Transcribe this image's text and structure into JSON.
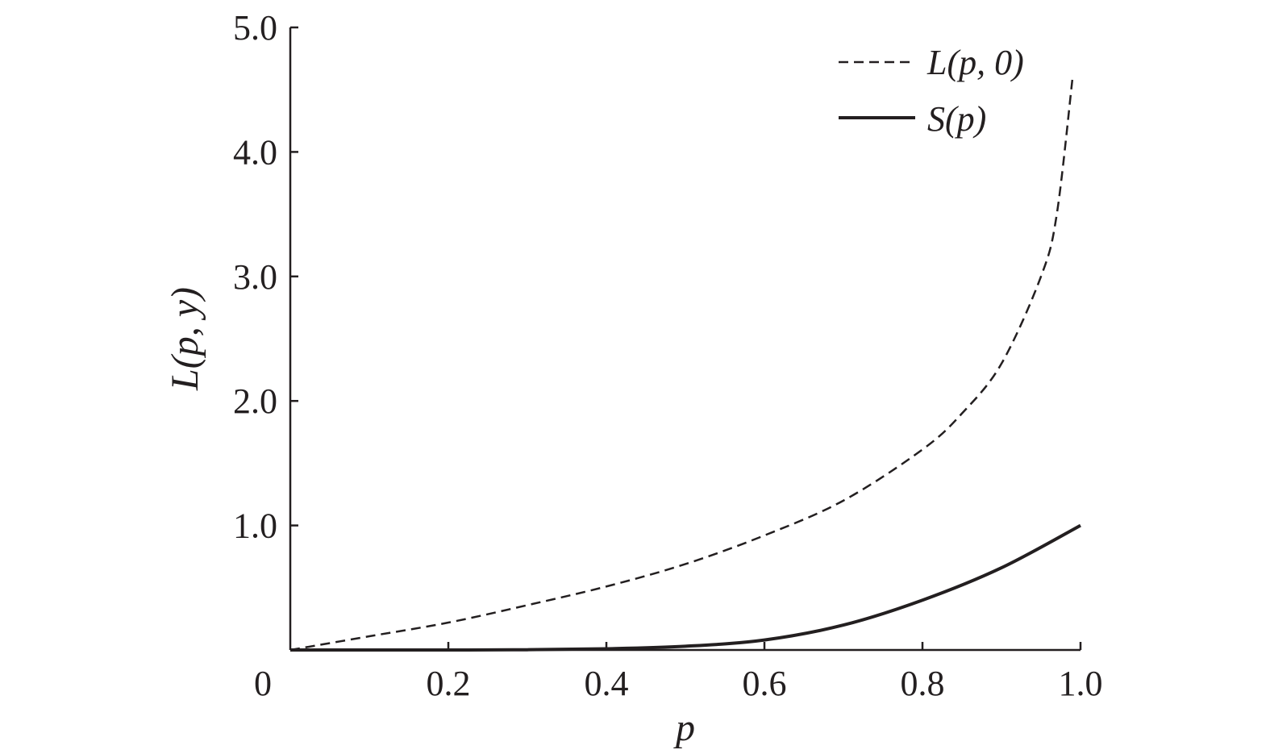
{
  "chart_data": {
    "type": "line",
    "xlabel": "p",
    "ylabel": "L(p, y)",
    "xlim": [
      0,
      1.0
    ],
    "ylim": [
      0,
      5.0
    ],
    "x_ticks": [
      "0",
      "0.2",
      "0.4",
      "0.6",
      "0.8",
      "1.0"
    ],
    "y_ticks": [
      "1.0",
      "2.0",
      "3.0",
      "4.0",
      "5.0"
    ],
    "legend_position": "top-right",
    "grid": false,
    "series": [
      {
        "name": "L(p, 0)",
        "style": "dashed",
        "x": [
          0,
          0.1,
          0.2,
          0.3,
          0.4,
          0.5,
          0.6,
          0.7,
          0.8,
          0.85,
          0.9,
          0.95,
          0.97,
          0.99
        ],
        "y": [
          0,
          0.11,
          0.22,
          0.36,
          0.51,
          0.69,
          0.92,
          1.2,
          1.61,
          1.9,
          2.3,
          3.0,
          3.5,
          4.6
        ]
      },
      {
        "name": "S(p)",
        "style": "solid",
        "x": [
          0,
          0.1,
          0.2,
          0.3,
          0.4,
          0.5,
          0.6,
          0.7,
          0.8,
          0.9,
          1.0
        ],
        "y": [
          0,
          0.0,
          0.0,
          0.002,
          0.01,
          0.03,
          0.08,
          0.2,
          0.4,
          0.66,
          1.0
        ]
      }
    ]
  }
}
